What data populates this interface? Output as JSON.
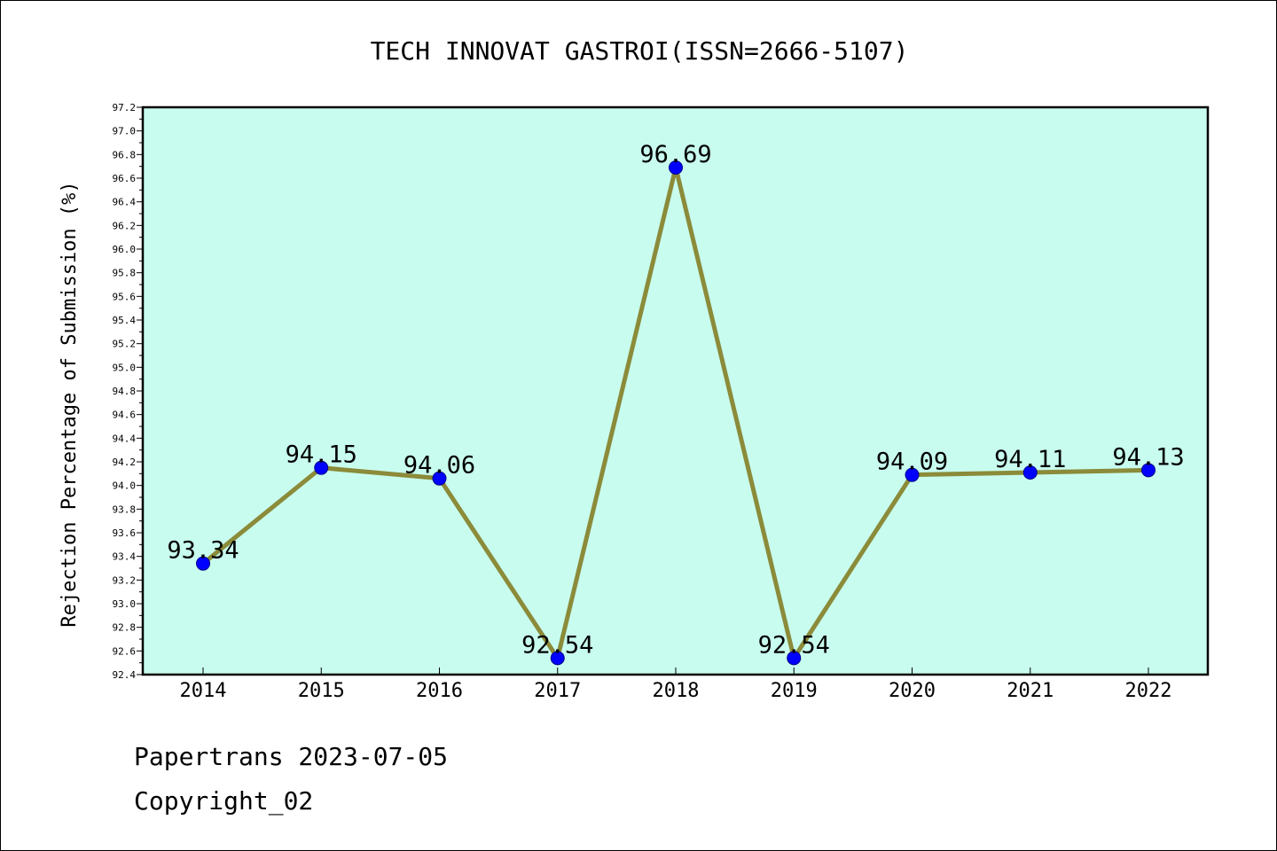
{
  "chart_data": {
    "type": "line",
    "title": "TECH INNOVAT GASTROI(ISSN=2666-5107)",
    "xlabel": "",
    "ylabel": "Rejection Percentage of Submission (%)",
    "categories": [
      "2014",
      "2015",
      "2016",
      "2017",
      "2018",
      "2019",
      "2020",
      "2021",
      "2022"
    ],
    "values": [
      93.34,
      94.15,
      94.06,
      92.54,
      96.69,
      92.54,
      94.09,
      94.11,
      94.13
    ],
    "data_labels": [
      "93.34",
      "94.15",
      "94.06",
      "92.54",
      "96.69",
      "92.54",
      "94.09",
      "94.11",
      "94.13"
    ],
    "ylim": [
      92.4,
      97.2
    ],
    "y_major_ticks": [
      "92.4",
      "92.6",
      "92.8",
      "93.0",
      "93.2",
      "93.4",
      "93.6",
      "93.8",
      "94.0",
      "94.2",
      "94.4",
      "94.6",
      "94.8",
      "95.0",
      "95.2",
      "95.4",
      "95.6",
      "95.8",
      "96.0",
      "96.2",
      "96.4",
      "96.6",
      "96.8",
      "97.0",
      "97.2"
    ],
    "grid": false,
    "colors": {
      "plot_background": "#c8fcee",
      "line": "#8b8b3a",
      "marker": "#0000ff"
    }
  },
  "footer": {
    "date_line": "Papertrans 2023-07-05",
    "copyright_line": "Copyright_02"
  }
}
